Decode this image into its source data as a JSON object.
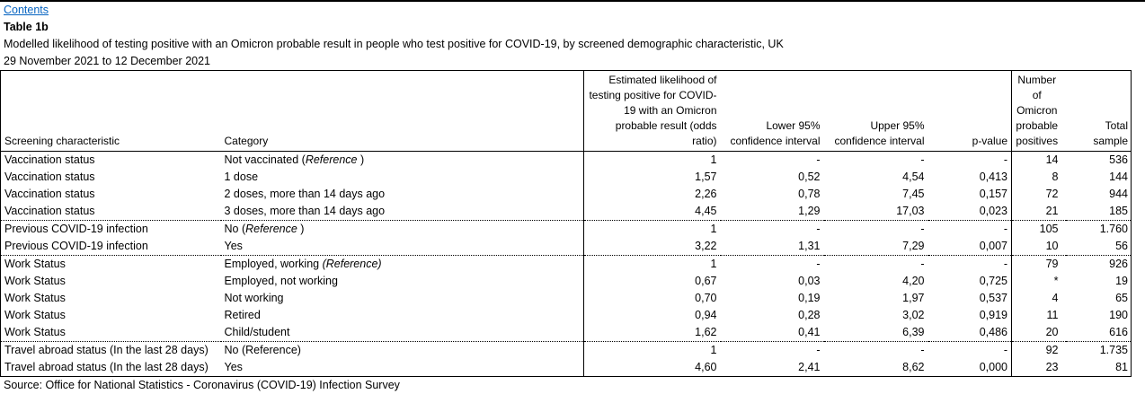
{
  "header": {
    "contents_link": "Contents",
    "table_label": "Table 1b",
    "description": "Modelled likelihood of testing positive with an Omicron probable result in people who test positive for COVID-19, by screened demographic characteristic, UK",
    "date_range": "29 November 2021 to 12 December 2021"
  },
  "table": {
    "headers": {
      "characteristic": "Screening characteristic",
      "category": "Category",
      "odds_ratio": "Estimated likelihood of\ntesting positive for COVID-\n19 with an Omicron\nprobable result (odds\nratio)",
      "lower_ci": "Lower 95%\nconfidence interval",
      "upper_ci": "Upper 95%\nconfidence interval",
      "p_value": "p-value",
      "positives": "Number\nof\nOmicron\nprobable\npositives",
      "total_sample": "Total\nsample"
    },
    "rows": [
      {
        "characteristic": "Vaccination status",
        "category": [
          {
            "text": "Not vaccinated (",
            "italic": false
          },
          {
            "text": "Reference",
            "italic": true
          },
          {
            "text": " )",
            "italic": false
          }
        ],
        "values": [
          "1",
          "-",
          "-",
          "-",
          "14",
          "536"
        ],
        "separator_after": false
      },
      {
        "characteristic": "Vaccination status",
        "category": [
          {
            "text": "1 dose",
            "italic": false
          }
        ],
        "values": [
          "1,57",
          "0,52",
          "4,54",
          "0,413",
          "8",
          "144"
        ],
        "separator_after": false
      },
      {
        "characteristic": "Vaccination status",
        "category": [
          {
            "text": "2 doses, more than 14 days ago",
            "italic": false
          }
        ],
        "values": [
          "2,26",
          "0,78",
          "7,45",
          "0,157",
          "72",
          "944"
        ],
        "separator_after": false
      },
      {
        "characteristic": "Vaccination status",
        "category": [
          {
            "text": "3 doses, more than 14 days ago",
            "italic": false
          }
        ],
        "values": [
          "4,45",
          "1,29",
          "17,03",
          "0,023",
          "21",
          "185"
        ],
        "separator_after": true
      },
      {
        "characteristic": "Previous COVID-19 infection",
        "category": [
          {
            "text": "No (",
            "italic": false
          },
          {
            "text": "Reference",
            "italic": true
          },
          {
            "text": " )",
            "italic": false
          }
        ],
        "values": [
          "1",
          "-",
          "-",
          "-",
          "105",
          "1.760"
        ],
        "separator_after": false
      },
      {
        "characteristic": "Previous COVID-19 infection",
        "category": [
          {
            "text": "Yes",
            "italic": false
          }
        ],
        "values": [
          "3,22",
          "1,31",
          "7,29",
          "0,007",
          "10",
          "56"
        ],
        "separator_after": true
      },
      {
        "characteristic": "Work Status",
        "category": [
          {
            "text": "Employed, working ",
            "italic": false
          },
          {
            "text": "(Reference)",
            "italic": true
          }
        ],
        "values": [
          "1",
          "-",
          "-",
          "-",
          "79",
          "926"
        ],
        "separator_after": false
      },
      {
        "characteristic": "Work Status",
        "category": [
          {
            "text": "Employed, not working",
            "italic": false
          }
        ],
        "values": [
          "0,67",
          "0,03",
          "4,20",
          "0,725",
          "*",
          "19"
        ],
        "separator_after": false
      },
      {
        "characteristic": "Work Status",
        "category": [
          {
            "text": "Not working",
            "italic": false
          }
        ],
        "values": [
          "0,70",
          "0,19",
          "1,97",
          "0,537",
          "4",
          "65"
        ],
        "separator_after": false
      },
      {
        "characteristic": "Work Status",
        "category": [
          {
            "text": "Retired",
            "italic": false
          }
        ],
        "values": [
          "0,94",
          "0,28",
          "3,02",
          "0,919",
          "11",
          "190"
        ],
        "separator_after": false
      },
      {
        "characteristic": "Work Status",
        "category": [
          {
            "text": "Child/student",
            "italic": false
          }
        ],
        "values": [
          "1,62",
          "0,41",
          "6,39",
          "0,486",
          "20",
          "616"
        ],
        "separator_after": true
      },
      {
        "characteristic": "Travel abroad status (In the last 28 days)",
        "category": [
          {
            "text": "No (Reference)",
            "italic": false
          }
        ],
        "values": [
          "1",
          "-",
          "-",
          "-",
          "92",
          "1.735"
        ],
        "separator_after": false
      },
      {
        "characteristic": "Travel abroad status (In the last 28 days)",
        "category": [
          {
            "text": "Yes",
            "italic": false
          }
        ],
        "values": [
          "4,60",
          "2,41",
          "8,62",
          "0,000",
          "23",
          "81"
        ],
        "separator_after": false
      }
    ]
  },
  "footer": {
    "source": "Source: Office for National Statistics - Coronavirus (COVID-19) Infection Survey"
  }
}
